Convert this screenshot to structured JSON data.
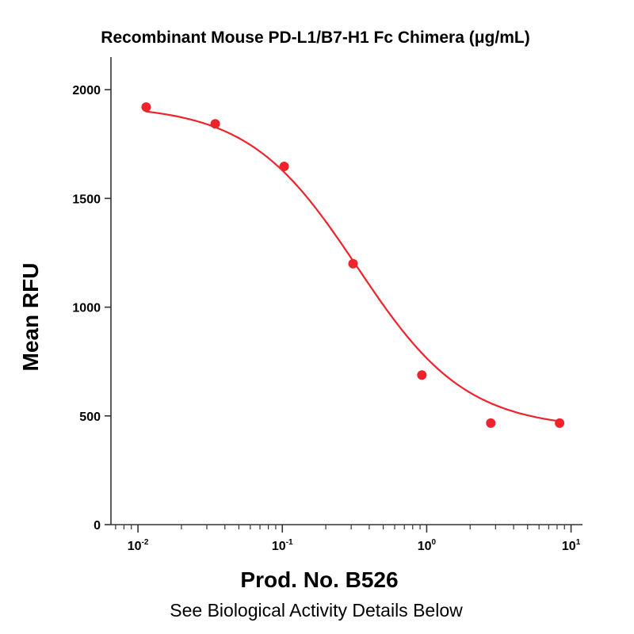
{
  "colors": {
    "series": "#f0222b",
    "axis": "#333333",
    "text": "#000000"
  },
  "chart_data": {
    "type": "scatter",
    "title": "Recombinant Mouse PD-L1/B7-H1 Fc Chimera (μg/mL)",
    "xlabel": "Prod. No. B526",
    "ylabel": "Mean RFU",
    "subtitle": "See Biological Activity Details Below",
    "x_scale": "log",
    "xlim": [
      0.0065,
      12
    ],
    "ylim": [
      0,
      2150
    ],
    "grid": false,
    "legend": "none",
    "x_ticks": [
      {
        "base": "10",
        "exp": "-2",
        "value": 0.01
      },
      {
        "base": "10",
        "exp": "-1",
        "value": 0.1
      },
      {
        "base": "10",
        "exp": "0",
        "value": 1
      },
      {
        "base": "10",
        "exp": "1",
        "value": 10
      }
    ],
    "y_ticks": [
      {
        "label": "0",
        "value": 0
      },
      {
        "label": "500",
        "value": 500
      },
      {
        "label": "1000",
        "value": 1000
      },
      {
        "label": "1500",
        "value": 1500
      },
      {
        "label": "2000",
        "value": 2000
      }
    ],
    "series": [
      {
        "points": [
          {
            "x": 0.0114,
            "y": 1920
          },
          {
            "x": 0.0343,
            "y": 1843
          },
          {
            "x": 0.103,
            "y": 1647
          },
          {
            "x": 0.309,
            "y": 1200
          },
          {
            "x": 0.926,
            "y": 688
          },
          {
            "x": 2.78,
            "y": 467
          },
          {
            "x": 8.33,
            "y": 467
          }
        ],
        "fit": {
          "model": "4PL",
          "top": 1930,
          "bottom": 440,
          "ec50": 0.33,
          "hill": 1.15
        }
      }
    ]
  }
}
